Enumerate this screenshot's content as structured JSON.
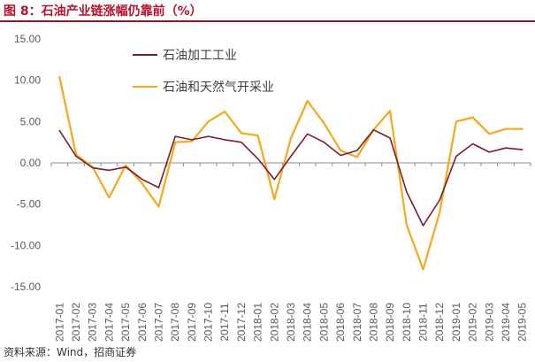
{
  "header": {
    "figure_title": "图 8：石油产业链涨幅仍靠前（%）"
  },
  "footer": {
    "source": "资料来源：Wind，招商证券"
  },
  "colors": {
    "title": "#b5122d",
    "series_1": "#7b1d2a",
    "series_2": "#f5a81c",
    "axis": "#8c8c8c",
    "tick_text": "#595959"
  },
  "chart_data": {
    "type": "line",
    "title": "",
    "xlabel": "",
    "ylabel": "",
    "ylim": [
      -15,
      15
    ],
    "yticks": [
      "15.00",
      "10.00",
      "5.00",
      "0.00",
      "-5.00",
      "-10.00",
      "-15.00"
    ],
    "grid": false,
    "legend": "top-center",
    "x": [
      "2017-01",
      "2017-02",
      "2017-03",
      "2017-04",
      "2017-05",
      "2017-06",
      "2017-07",
      "2017-08",
      "2017-09",
      "2017-10",
      "2017-11",
      "2017-12",
      "2018-01",
      "2018-02",
      "2018-03",
      "2018-04",
      "2018-05",
      "2018-06",
      "2018-07",
      "2018-08",
      "2018-09",
      "2018-10",
      "2018-11",
      "2018-12",
      "2019-01",
      "2019-02",
      "2019-03",
      "2019-04",
      "2019-05"
    ],
    "series": [
      {
        "name": "石油加工工业",
        "values": [
          3.9,
          0.8,
          -0.6,
          -0.9,
          -0.5,
          -2.0,
          -3.0,
          3.2,
          2.8,
          3.2,
          2.8,
          2.5,
          0.5,
          -2.0,
          0.8,
          3.5,
          2.5,
          0.9,
          1.5,
          4.0,
          3.0,
          -3.5,
          -7.6,
          -4.5,
          0.8,
          2.3,
          1.3,
          1.8,
          1.6
        ]
      },
      {
        "name": "石油和天然气开采业",
        "values": [
          10.4,
          1.0,
          -0.5,
          -4.2,
          -0.3,
          -2.5,
          -5.3,
          2.5,
          2.6,
          5.0,
          6.2,
          3.6,
          3.3,
          -4.4,
          3.0,
          7.5,
          4.8,
          1.5,
          0.7,
          4.0,
          6.3,
          -7.5,
          -12.9,
          -6.0,
          5.0,
          5.5,
          3.5,
          4.1,
          4.1
        ]
      }
    ]
  }
}
